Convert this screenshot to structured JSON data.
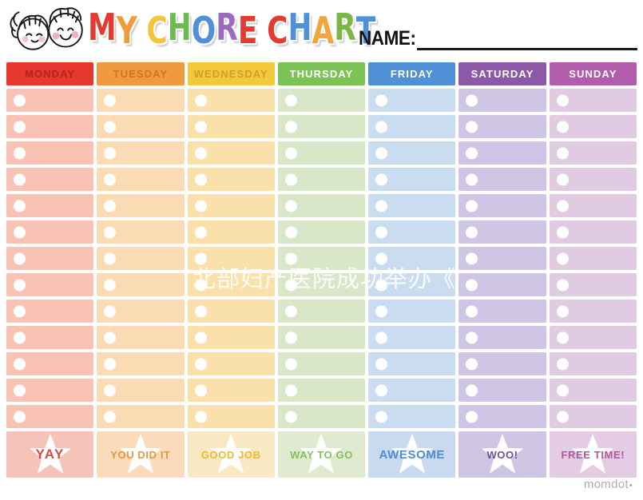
{
  "header": {
    "name_label": "NAME:",
    "title_letters": [
      {
        "ch": "M",
        "color": "#e23c32"
      },
      {
        "ch": "Y",
        "color": "#f2993a"
      },
      {
        "ch": " "
      },
      {
        "ch": "C",
        "color": "#f2c53a"
      },
      {
        "ch": "H",
        "color": "#6cbb4e"
      },
      {
        "ch": "O",
        "color": "#4f90d6"
      },
      {
        "ch": "R",
        "color": "#9b6bbf"
      },
      {
        "ch": "E",
        "color": "#e23c32"
      },
      {
        "ch": " "
      },
      {
        "ch": "C",
        "color": "#e23c32"
      },
      {
        "ch": "H",
        "color": "#4f90d6"
      },
      {
        "ch": "A",
        "color": "#f0a63c"
      },
      {
        "ch": "R",
        "color": "#7cb746"
      },
      {
        "ch": "T",
        "color": "#4f90d6"
      }
    ]
  },
  "days": [
    {
      "label": "MONDAY",
      "header_bg": "#e6382e",
      "header_fg": "#b3241d",
      "cell_bg": "#f8c3b5",
      "footer_bg": "#f5c3b7",
      "footer_label": "YAY",
      "footer_fg": "#d94a42"
    },
    {
      "label": "TUESDAY",
      "header_bg": "#f0993e",
      "header_fg": "#cc7526",
      "cell_bg": "#fbdbb3",
      "footer_bg": "#fadcba",
      "footer_label": "YOU DID IT",
      "footer_fg": "#e8963f"
    },
    {
      "label": "WEDNESDAY",
      "header_bg": "#f2c83d",
      "header_fg": "#d29e28",
      "cell_bg": "#fae0ab",
      "footer_bg": "#f9e9c2",
      "footer_label": "GOOD JOB",
      "footer_fg": "#ecba35"
    },
    {
      "label": "THURSDAY",
      "header_bg": "#7cc355",
      "header_fg": "#ffffff",
      "cell_bg": "#d9e7c9",
      "footer_bg": "#dfead0",
      "footer_label": "WAY TO GO",
      "footer_fg": "#87bd5e"
    },
    {
      "label": "FRIDAY",
      "header_bg": "#4f90d6",
      "header_fg": "#ffffff",
      "cell_bg": "#cadcf0",
      "footer_bg": "#c9daf0",
      "footer_label": "AWESOME",
      "footer_fg": "#4c8cd2"
    },
    {
      "label": "SATURDAY",
      "header_bg": "#8d58a8",
      "header_fg": "#ffffff",
      "cell_bg": "#cec6e4",
      "footer_bg": "#cfc5e2",
      "footer_label": "WOO!",
      "footer_fg": "#6b5096"
    },
    {
      "label": "SUNDAY",
      "header_bg": "#b25dab",
      "header_fg": "#ffffff",
      "cell_bg": "#e1cbe3",
      "footer_bg": "#e3cce4",
      "footer_label": "FREE TIME!",
      "footer_fg": "#b5569f"
    }
  ],
  "grid": {
    "rows": 13,
    "checkbox_icon": "circle-checkbox-icon",
    "star_icon": "star-icon"
  },
  "watermark": {
    "text": "北部妇产医院成功举办《"
  },
  "footer_brand": {
    "text": "momdot",
    "dot": "•"
  }
}
